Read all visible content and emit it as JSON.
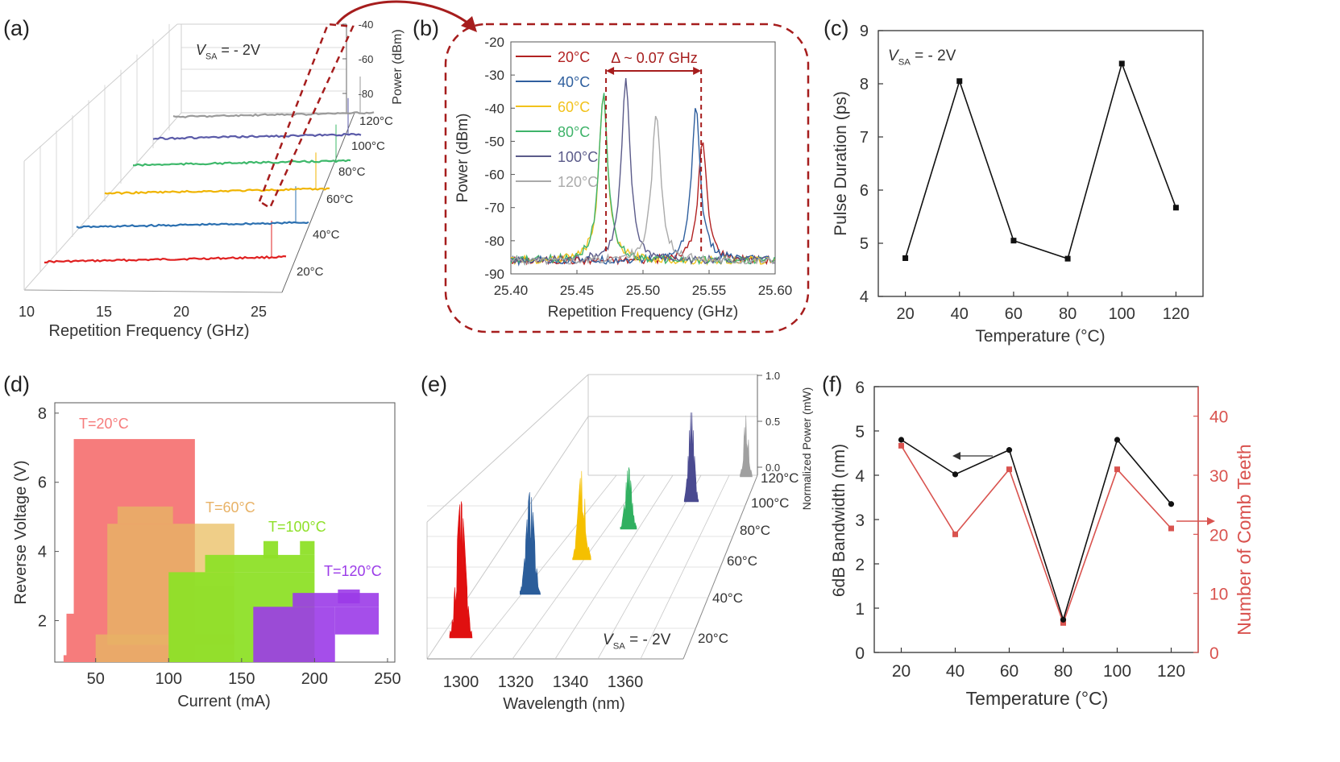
{
  "chart_data": [
    {
      "panel": "(a)",
      "type": "line",
      "kind": "3d-waterfall",
      "annotation": "V_SA = - 2V",
      "xlabel": "Repetition Frequency (GHz)",
      "zlabel": "Power (dBm)",
      "x_ticks": [
        "10",
        "15",
        "20",
        "25"
      ],
      "z_ticks": [
        "-40",
        "-60",
        "-80"
      ],
      "series": [
        {
          "name": "20°C",
          "color": "#e02020",
          "peak_ghz": 25.545
        },
        {
          "name": "40°C",
          "color": "#2a6fb0",
          "peak_ghz": 25.54
        },
        {
          "name": "60°C",
          "color": "#f0b400",
          "peak_ghz": 25.47
        },
        {
          "name": "80°C",
          "color": "#3db86a",
          "peak_ghz": 25.47
        },
        {
          "name": "100°C",
          "color": "#5a5aa8",
          "peak_ghz": 25.487
        },
        {
          "name": "120°C",
          "color": "#9a9a9a",
          "peak_ghz": 25.51
        }
      ]
    },
    {
      "panel": "(b)",
      "type": "line",
      "xlabel": "Repetition Frequency (GHz)",
      "ylabel": "Power (dBm)",
      "xlim": [
        25.4,
        25.6
      ],
      "ylim": [
        -90,
        -20
      ],
      "x_ticks": [
        "25.40",
        "25.45",
        "25.50",
        "25.55",
        "25.60"
      ],
      "y_ticks": [
        "-20",
        "-30",
        "-40",
        "-50",
        "-60",
        "-70",
        "-80",
        "-90"
      ],
      "annotation": "Δ ~ 0.07 GHz",
      "series": [
        {
          "name": "20°C",
          "color": "#b22222",
          "peak_x": 25.545,
          "peak_y": -50
        },
        {
          "name": "40°C",
          "color": "#2f5f9e",
          "peak_x": 25.54,
          "peak_y": -40
        },
        {
          "name": "60°C",
          "color": "#f2c21b",
          "peak_x": 25.47,
          "peak_y": -36
        },
        {
          "name": "80°C",
          "color": "#3fb36a",
          "peak_x": 25.47,
          "peak_y": -35
        },
        {
          "name": "100°C",
          "color": "#5b5b8a",
          "peak_x": 25.487,
          "peak_y": -32
        },
        {
          "name": "120°C",
          "color": "#aaaaaa",
          "peak_x": 25.51,
          "peak_y": -41
        }
      ]
    },
    {
      "panel": "(c)",
      "type": "line",
      "annotation": "V_SA = - 2V",
      "xlabel": "Temperature (°C)",
      "ylabel": "Pulse Duration (ps)",
      "x": [
        20,
        40,
        60,
        80,
        100,
        120
      ],
      "values": [
        4.72,
        8.05,
        5.05,
        4.71,
        8.38,
        5.67
      ],
      "xlim": [
        10,
        130
      ],
      "ylim": [
        4,
        9
      ],
      "x_ticks": [
        "20",
        "40",
        "60",
        "80",
        "100",
        "120"
      ],
      "y_ticks": [
        "4",
        "5",
        "6",
        "7",
        "8",
        "9"
      ]
    },
    {
      "panel": "(d)",
      "type": "heatmap",
      "xlabel": "Current (mA)",
      "ylabel": "Reverse Voltage (V)",
      "xlim": [
        22,
        255
      ],
      "ylim": [
        0.8,
        8.3
      ],
      "x_ticks": [
        "50",
        "100",
        "150",
        "200",
        "250"
      ],
      "y_ticks": [
        "2",
        "4",
        "6",
        "8"
      ],
      "regions": [
        {
          "name": "T=20°C",
          "color": "#f67c7c"
        },
        {
          "name": "T=60°C",
          "color": "#e8b266"
        },
        {
          "name": "T=100°C",
          "color": "#8ee028"
        },
        {
          "name": "T=120°C",
          "color": "#9b3be8"
        }
      ]
    },
    {
      "panel": "(e)",
      "type": "area",
      "kind": "3d-waterfall",
      "annotation": "V_SA = - 2V",
      "xlabel": "Wavelength (nm)",
      "zlabel": "Normalized Power (mW)",
      "x_ticks": [
        "1300",
        "1320",
        "1340",
        "1360"
      ],
      "z_ticks": [
        "1.0",
        "0.5",
        "0.0"
      ],
      "series": [
        {
          "name": "20°C",
          "color": "#e01010",
          "center_nm": 1300,
          "height": 1.0
        },
        {
          "name": "40°C",
          "color": "#2b5d9a",
          "center_nm": 1320,
          "height": 0.95
        },
        {
          "name": "60°C",
          "color": "#f5c000",
          "center_nm": 1335,
          "height": 0.92
        },
        {
          "name": "80°C",
          "color": "#30b060",
          "center_nm": 1345,
          "height": 0.7
        },
        {
          "name": "100°C",
          "color": "#4a4a90",
          "center_nm": 1358,
          "height": 0.95
        },
        {
          "name": "120°C",
          "color": "#a0a0a0",
          "center_nm": 1368,
          "height": 0.85
        }
      ]
    },
    {
      "panel": "(f)",
      "type": "line",
      "xlabel": "Temperature (°C)",
      "ylabel": "6dB Bandwidth (nm)",
      "y2label": "Number of Comb Teeth",
      "x": [
        20,
        40,
        60,
        80,
        100,
        120
      ],
      "xlim": [
        10,
        130
      ],
      "ylim": [
        0,
        6
      ],
      "y2lim": [
        0,
        45
      ],
      "x_ticks": [
        "20",
        "40",
        "60",
        "80",
        "100",
        "120"
      ],
      "y_ticks": [
        "0",
        "1",
        "2",
        "3",
        "4",
        "5",
        "6"
      ],
      "y2_ticks": [
        "0",
        "10",
        "20",
        "30",
        "40"
      ],
      "series": [
        {
          "name": "6dB Bandwidth",
          "axis": "left",
          "color": "#111111",
          "values": [
            4.8,
            4.02,
            4.57,
            0.74,
            4.8,
            3.35
          ]
        },
        {
          "name": "Number of Comb Teeth",
          "axis": "right",
          "color": "#d9534f",
          "values": [
            35,
            20,
            31,
            5,
            31,
            21
          ]
        }
      ]
    }
  ],
  "panel_labels": [
    "(a)",
    "(b)",
    "(c)",
    "(d)",
    "(e)",
    "(f)"
  ]
}
